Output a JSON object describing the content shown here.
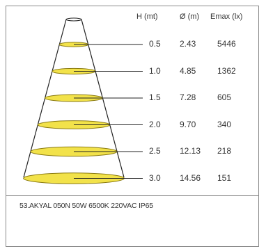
{
  "headers": {
    "height": "H (mt)",
    "diameter": "Ø (m)",
    "emax": "Emax (lx)"
  },
  "rows": [
    {
      "h": "0.5",
      "d": "2.43",
      "e": "5446"
    },
    {
      "h": "1.0",
      "d": "4.85",
      "e": "1362"
    },
    {
      "h": "1.5",
      "d": "7.28",
      "e": "605"
    },
    {
      "h": "2.0",
      "d": "9.70",
      "e": "340"
    },
    {
      "h": "2.5",
      "d": "12.13",
      "e": "218"
    },
    {
      "h": "3.0",
      "d": "14.56",
      "e": "151"
    }
  ],
  "caption": "53.AKYAL 050N 50W 6500K 220VAC IP65",
  "colors": {
    "ellipse_fill": "#f2e24a",
    "ellipse_stroke": "#8a7a10",
    "lines": "#222222"
  }
}
